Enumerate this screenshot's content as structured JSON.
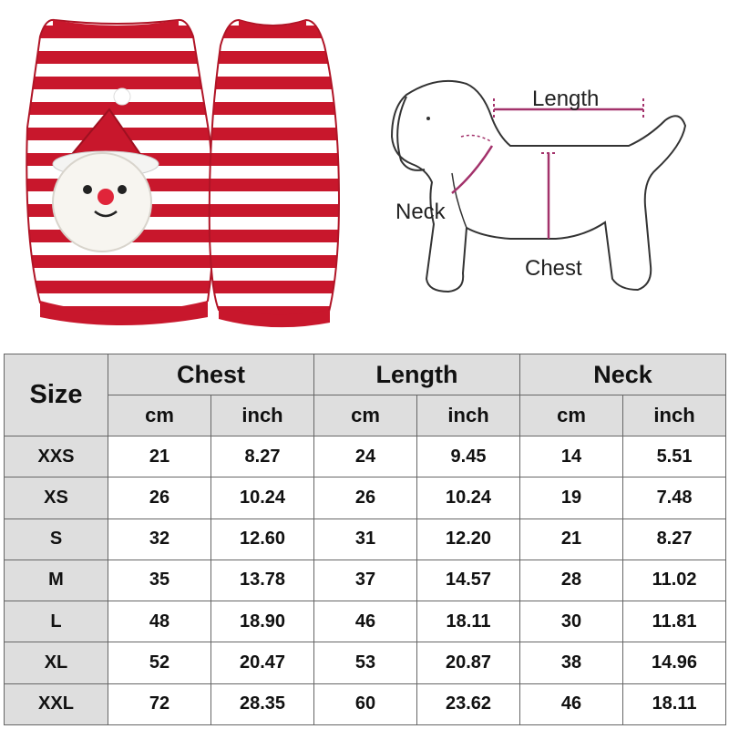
{
  "diagram": {
    "length_label": "Length",
    "neck_label": "Neck",
    "chest_label": "Chest",
    "accent_color": "#a3326b",
    "sweater_red": "#c8172c"
  },
  "table": {
    "size_header": "Size",
    "groups": [
      "Chest",
      "Length",
      "Neck"
    ],
    "units": [
      "cm",
      "inch",
      "cm",
      "inch",
      "cm",
      "inch"
    ],
    "rows": [
      {
        "size": "XXS",
        "values": [
          "21",
          "8.27",
          "24",
          "9.45",
          "14",
          "5.51"
        ]
      },
      {
        "size": "XS",
        "values": [
          "26",
          "10.24",
          "26",
          "10.24",
          "19",
          "7.48"
        ]
      },
      {
        "size": "S",
        "values": [
          "32",
          "12.60",
          "31",
          "12.20",
          "21",
          "8.27"
        ]
      },
      {
        "size": "M",
        "values": [
          "35",
          "13.78",
          "37",
          "14.57",
          "28",
          "11.02"
        ]
      },
      {
        "size": "L",
        "values": [
          "48",
          "18.90",
          "46",
          "18.11",
          "30",
          "11.81"
        ]
      },
      {
        "size": "XL",
        "values": [
          "52",
          "20.47",
          "53",
          "20.87",
          "38",
          "14.96"
        ]
      },
      {
        "size": "XXL",
        "values": [
          "72",
          "28.35",
          "60",
          "23.62",
          "46",
          "18.11"
        ]
      }
    ],
    "header_bg": "#dedede"
  }
}
